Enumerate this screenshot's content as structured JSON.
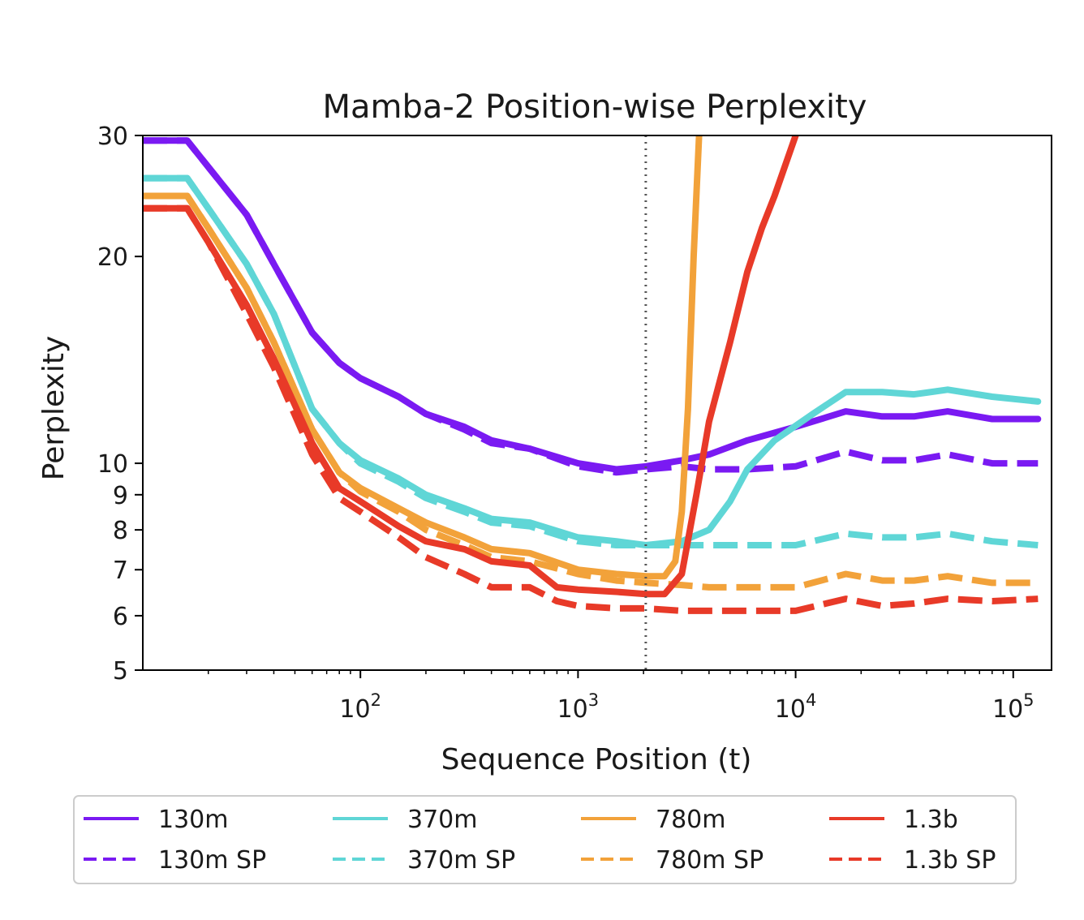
{
  "chart_data": {
    "type": "line",
    "title": "Mamba-2 Position-wise Perplexity",
    "xlabel": "Sequence Position (t)",
    "ylabel": "Perplexity",
    "x_scale": "log",
    "y_scale": "log",
    "xlim": [
      10,
      150000
    ],
    "ylim": [
      5,
      30
    ],
    "x_ticks": [
      {
        "value": 100,
        "base": "10",
        "exp": "2"
      },
      {
        "value": 1000,
        "base": "10",
        "exp": "3"
      },
      {
        "value": 10000,
        "base": "10",
        "exp": "4"
      },
      {
        "value": 100000,
        "base": "10",
        "exp": "5"
      }
    ],
    "y_ticks": [
      {
        "value": 5,
        "label": "5"
      },
      {
        "value": 6,
        "label": "6"
      },
      {
        "value": 7,
        "label": "7"
      },
      {
        "value": 8,
        "label": "8"
      },
      {
        "value": 9,
        "label": "9"
      },
      {
        "value": 10,
        "label": "10"
      },
      {
        "value": 20,
        "label": "20"
      },
      {
        "value": 30,
        "label": "30"
      }
    ],
    "reference_line": {
      "x": 2048,
      "style": "dotted",
      "color": "#555555"
    },
    "grid": false,
    "legend_position": "bottom",
    "series": [
      {
        "name": "130m",
        "color": "#7A1AF2",
        "dash": false,
        "points": [
          [
            10,
            29.5
          ],
          [
            16,
            29.5
          ],
          [
            20,
            27
          ],
          [
            30,
            23
          ],
          [
            40,
            19.5
          ],
          [
            60,
            15.5
          ],
          [
            80,
            14
          ],
          [
            100,
            13.3
          ],
          [
            150,
            12.5
          ],
          [
            200,
            11.8
          ],
          [
            300,
            11.3
          ],
          [
            400,
            10.8
          ],
          [
            600,
            10.5
          ],
          [
            1000,
            10
          ],
          [
            1500,
            9.8
          ],
          [
            2048,
            9.9
          ],
          [
            3000,
            10.1
          ],
          [
            4000,
            10.3
          ],
          [
            6000,
            10.8
          ],
          [
            10000,
            11.3
          ],
          [
            17000,
            11.9
          ],
          [
            25000,
            11.7
          ],
          [
            35000,
            11.7
          ],
          [
            50000,
            11.9
          ],
          [
            80000,
            11.6
          ],
          [
            130000,
            11.6
          ]
        ]
      },
      {
        "name": "130m SP",
        "color": "#7A1AF2",
        "dash": true,
        "points": [
          [
            10,
            29.5
          ],
          [
            16,
            29.5
          ],
          [
            20,
            27
          ],
          [
            30,
            23
          ],
          [
            40,
            19.5
          ],
          [
            60,
            15.5
          ],
          [
            80,
            14
          ],
          [
            100,
            13.3
          ],
          [
            150,
            12.5
          ],
          [
            200,
            11.8
          ],
          [
            300,
            11.2
          ],
          [
            400,
            10.7
          ],
          [
            600,
            10.5
          ],
          [
            1000,
            9.9
          ],
          [
            1500,
            9.7
          ],
          [
            2048,
            9.8
          ],
          [
            3000,
            9.9
          ],
          [
            4000,
            9.8
          ],
          [
            6000,
            9.8
          ],
          [
            10000,
            9.9
          ],
          [
            17000,
            10.4
          ],
          [
            25000,
            10.1
          ],
          [
            35000,
            10.1
          ],
          [
            50000,
            10.3
          ],
          [
            80000,
            10.0
          ],
          [
            130000,
            10.0
          ]
        ]
      },
      {
        "name": "370m",
        "color": "#5FD6D6",
        "dash": false,
        "points": [
          [
            10,
            26
          ],
          [
            16,
            26
          ],
          [
            20,
            23.5
          ],
          [
            30,
            19.5
          ],
          [
            40,
            16.5
          ],
          [
            60,
            12
          ],
          [
            80,
            10.7
          ],
          [
            100,
            10.1
          ],
          [
            150,
            9.5
          ],
          [
            200,
            9
          ],
          [
            300,
            8.6
          ],
          [
            400,
            8.3
          ],
          [
            600,
            8.2
          ],
          [
            1000,
            7.8
          ],
          [
            1500,
            7.7
          ],
          [
            2048,
            7.6
          ],
          [
            3000,
            7.7
          ],
          [
            4000,
            8
          ],
          [
            5000,
            8.8
          ],
          [
            6000,
            9.8
          ],
          [
            8000,
            10.8
          ],
          [
            12000,
            11.8
          ],
          [
            17000,
            12.7
          ],
          [
            25000,
            12.7
          ],
          [
            35000,
            12.6
          ],
          [
            50000,
            12.8
          ],
          [
            80000,
            12.5
          ],
          [
            130000,
            12.3
          ]
        ]
      },
      {
        "name": "370m SP",
        "color": "#5FD6D6",
        "dash": true,
        "points": [
          [
            10,
            26
          ],
          [
            16,
            26
          ],
          [
            20,
            23.5
          ],
          [
            30,
            19.5
          ],
          [
            40,
            16.5
          ],
          [
            60,
            12
          ],
          [
            80,
            10.7
          ],
          [
            100,
            10.0
          ],
          [
            150,
            9.4
          ],
          [
            200,
            8.9
          ],
          [
            300,
            8.5
          ],
          [
            400,
            8.2
          ],
          [
            600,
            8.1
          ],
          [
            1000,
            7.7
          ],
          [
            1500,
            7.6
          ],
          [
            2048,
            7.6
          ],
          [
            3000,
            7.6
          ],
          [
            4000,
            7.6
          ],
          [
            6000,
            7.6
          ],
          [
            10000,
            7.6
          ],
          [
            17000,
            7.9
          ],
          [
            25000,
            7.8
          ],
          [
            35000,
            7.8
          ],
          [
            50000,
            7.9
          ],
          [
            80000,
            7.7
          ],
          [
            130000,
            7.6
          ]
        ]
      },
      {
        "name": "780m",
        "color": "#F2A23A",
        "dash": false,
        "points": [
          [
            10,
            24.5
          ],
          [
            16,
            24.5
          ],
          [
            20,
            22
          ],
          [
            30,
            18
          ],
          [
            40,
            15
          ],
          [
            60,
            11.2
          ],
          [
            80,
            9.7
          ],
          [
            100,
            9.2
          ],
          [
            150,
            8.6
          ],
          [
            200,
            8.2
          ],
          [
            300,
            7.8
          ],
          [
            400,
            7.5
          ],
          [
            600,
            7.4
          ],
          [
            1000,
            7
          ],
          [
            1500,
            6.9
          ],
          [
            2048,
            6.85
          ],
          [
            2500,
            6.85
          ],
          [
            2800,
            7.2
          ],
          [
            3000,
            8.5
          ],
          [
            3200,
            12
          ],
          [
            3400,
            20
          ],
          [
            3600,
            30
          ],
          [
            3800,
            40
          ]
        ]
      },
      {
        "name": "780m SP",
        "color": "#F2A23A",
        "dash": true,
        "points": [
          [
            10,
            24.5
          ],
          [
            16,
            24.5
          ],
          [
            20,
            22
          ],
          [
            30,
            18
          ],
          [
            40,
            15
          ],
          [
            60,
            11.2
          ],
          [
            80,
            9.7
          ],
          [
            100,
            9.1
          ],
          [
            150,
            8.5
          ],
          [
            200,
            8.0
          ],
          [
            300,
            7.6
          ],
          [
            400,
            7.3
          ],
          [
            600,
            7.2
          ],
          [
            1000,
            6.9
          ],
          [
            1500,
            6.75
          ],
          [
            2048,
            6.7
          ],
          [
            3000,
            6.65
          ],
          [
            4000,
            6.6
          ],
          [
            6000,
            6.6
          ],
          [
            10000,
            6.6
          ],
          [
            17000,
            6.9
          ],
          [
            25000,
            6.75
          ],
          [
            35000,
            6.75
          ],
          [
            50000,
            6.85
          ],
          [
            80000,
            6.7
          ],
          [
            130000,
            6.7
          ]
        ]
      },
      {
        "name": "1.3b",
        "color": "#E83A28",
        "dash": false,
        "points": [
          [
            10,
            23.5
          ],
          [
            16,
            23.5
          ],
          [
            20,
            21
          ],
          [
            30,
            17
          ],
          [
            40,
            14.2
          ],
          [
            60,
            10.7
          ],
          [
            80,
            9.2
          ],
          [
            100,
            8.8
          ],
          [
            150,
            8.1
          ],
          [
            200,
            7.7
          ],
          [
            300,
            7.5
          ],
          [
            400,
            7.2
          ],
          [
            600,
            7.1
          ],
          [
            800,
            6.6
          ],
          [
            1000,
            6.55
          ],
          [
            1500,
            6.5
          ],
          [
            2048,
            6.45
          ],
          [
            2500,
            6.45
          ],
          [
            3000,
            6.9
          ],
          [
            3500,
            9
          ],
          [
            4000,
            11.5
          ],
          [
            5000,
            15
          ],
          [
            6000,
            19
          ],
          [
            7000,
            22
          ],
          [
            8000,
            24.5
          ],
          [
            10000,
            30
          ],
          [
            12000,
            40
          ]
        ]
      },
      {
        "name": "1.3b SP",
        "color": "#E83A28",
        "dash": true,
        "points": [
          [
            10,
            23.5
          ],
          [
            16,
            23.5
          ],
          [
            20,
            21
          ],
          [
            30,
            16.5
          ],
          [
            40,
            13.8
          ],
          [
            60,
            10.3
          ],
          [
            80,
            8.9
          ],
          [
            100,
            8.5
          ],
          [
            150,
            7.8
          ],
          [
            200,
            7.3
          ],
          [
            300,
            6.9
          ],
          [
            400,
            6.6
          ],
          [
            600,
            6.6
          ],
          [
            800,
            6.3
          ],
          [
            1000,
            6.2
          ],
          [
            1500,
            6.15
          ],
          [
            2048,
            6.15
          ],
          [
            3000,
            6.1
          ],
          [
            4000,
            6.1
          ],
          [
            6000,
            6.1
          ],
          [
            10000,
            6.1
          ],
          [
            17000,
            6.35
          ],
          [
            25000,
            6.2
          ],
          [
            35000,
            6.25
          ],
          [
            50000,
            6.35
          ],
          [
            80000,
            6.3
          ],
          [
            130000,
            6.35
          ]
        ]
      }
    ]
  }
}
